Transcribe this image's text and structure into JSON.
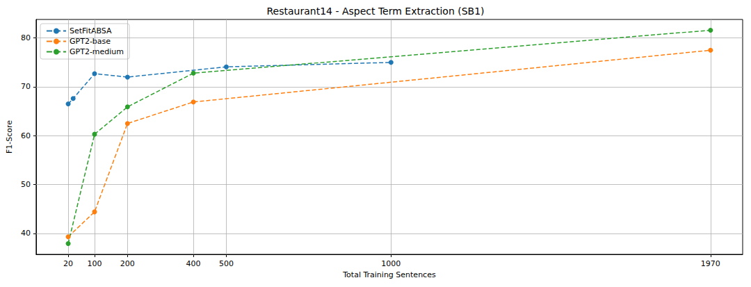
{
  "chart_data": {
    "type": "line",
    "title": "Restaurant14 - Aspect Term Extraction (SB1)",
    "x_label": "Total Training Sentences",
    "y_label": "F1-Score",
    "series": [
      {
        "name": "SetFitABSA",
        "color": "#1f77b4",
        "marker": "circle",
        "line_style": "dashed",
        "x": [
          20,
          35,
          100,
          200,
          500,
          1000
        ],
        "values": [
          66.5,
          67.6,
          72.7,
          72.0,
          74.1,
          75.0
        ]
      },
      {
        "name": "GPT2-base",
        "color": "#ff7f0e",
        "marker": "circle",
        "line_style": "dashed",
        "x": [
          20,
          100,
          200,
          400,
          1970
        ],
        "values": [
          39.3,
          44.4,
          62.5,
          66.9,
          77.5
        ]
      },
      {
        "name": "GPT2-medium",
        "color": "#2ca02c",
        "marker": "circle",
        "line_style": "dashed",
        "x": [
          20,
          100,
          200,
          400,
          1970
        ],
        "values": [
          37.9,
          60.3,
          65.9,
          72.8,
          81.6
        ]
      }
    ],
    "xlim": [
      -77.5,
      2067.5
    ],
    "xticks": [
      20,
      100,
      200,
      400,
      500,
      1000,
      1970
    ],
    "ylim": [
      35.7,
      83.8
    ],
    "yticks": [
      40,
      50,
      60,
      70,
      80
    ],
    "grid": true,
    "legend": "upper left"
  }
}
